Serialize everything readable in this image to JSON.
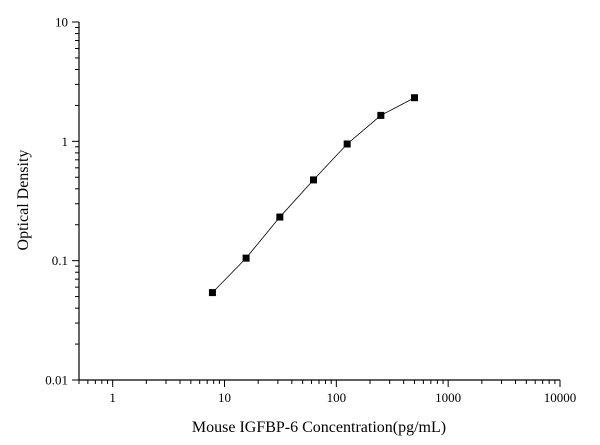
{
  "chart_data": {
    "type": "scatter",
    "xlabel": "Mouse IGFBP-6 Concentration(pg/mL)",
    "ylabel": "Optical Density",
    "xscale": "log",
    "yscale": "log",
    "xlim": [
      0.5,
      10000
    ],
    "ylim": [
      0.01,
      10
    ],
    "x_ticks": [
      "1",
      "10",
      "100",
      "1000",
      "10000"
    ],
    "y_ticks": [
      "0.01",
      "0.1",
      "1",
      "10"
    ],
    "grid": false,
    "legend": "none",
    "marker": "square",
    "connected": true,
    "series": [
      {
        "x": [
          7.8,
          15.6,
          31.25,
          62.5,
          125,
          250,
          500
        ],
        "y": [
          0.054,
          0.105,
          0.232,
          0.475,
          0.95,
          1.65,
          2.32
        ]
      }
    ],
    "colors": {
      "marker": "#000000",
      "line": "#000000",
      "axis": "#000000"
    }
  }
}
